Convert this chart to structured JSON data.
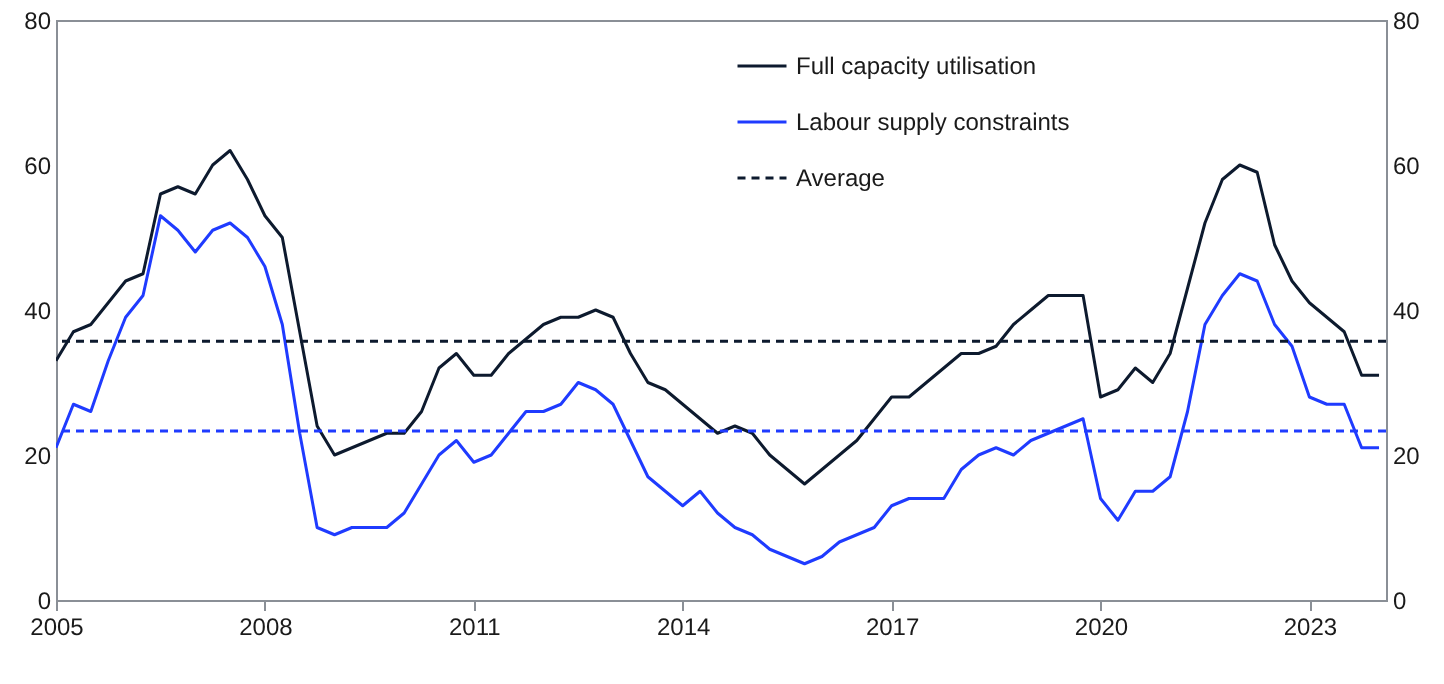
{
  "chart_data": {
    "type": "line",
    "x": [
      2005,
      2005.25,
      2005.5,
      2005.75,
      2006,
      2006.25,
      2006.5,
      2006.75,
      2007,
      2007.25,
      2007.5,
      2007.75,
      2008,
      2008.25,
      2008.5,
      2008.75,
      2009,
      2009.25,
      2009.5,
      2009.75,
      2010,
      2010.25,
      2010.5,
      2010.75,
      2011,
      2011.25,
      2011.5,
      2011.75,
      2012,
      2012.25,
      2012.5,
      2012.75,
      2013,
      2013.25,
      2013.5,
      2013.75,
      2014,
      2014.25,
      2014.5,
      2014.75,
      2015,
      2015.25,
      2015.5,
      2015.75,
      2016,
      2016.25,
      2016.5,
      2016.75,
      2017,
      2017.25,
      2017.5,
      2017.75,
      2018,
      2018.25,
      2018.5,
      2018.75,
      2019,
      2019.25,
      2019.5,
      2019.75,
      2020,
      2020.25,
      2020.5,
      2020.75,
      2021,
      2021.25,
      2021.5,
      2021.75,
      2022,
      2022.25,
      2022.5,
      2022.75,
      2023,
      2023.25,
      2023.5,
      2023.75,
      2024
    ],
    "series": [
      {
        "name": "Full capacity utilisation",
        "color": "#0d1a2e",
        "values": [
          33,
          37,
          38,
          41,
          44,
          45,
          56,
          57,
          56,
          60,
          62,
          58,
          53,
          50,
          37,
          24,
          20,
          21,
          22,
          23,
          23,
          26,
          32,
          34,
          31,
          31,
          34,
          36,
          38,
          39,
          39,
          40,
          39,
          34,
          30,
          29,
          27,
          25,
          23,
          24,
          23,
          20,
          18,
          16,
          18,
          20,
          22,
          25,
          28,
          28,
          30,
          32,
          34,
          34,
          35,
          38,
          40,
          42,
          42,
          42,
          28,
          29,
          32,
          30,
          34,
          43,
          52,
          58,
          60,
          59,
          49,
          44,
          41,
          39,
          37,
          31,
          31
        ]
      },
      {
        "name": "Labour supply constraints",
        "color": "#1f3bff",
        "values": [
          21,
          27,
          26,
          33,
          39,
          42,
          53,
          51,
          48,
          51,
          52,
          50,
          46,
          38,
          23,
          10,
          9,
          10,
          10,
          10,
          12,
          16,
          20,
          22,
          19,
          20,
          23,
          26,
          26,
          27,
          30,
          29,
          27,
          22,
          17,
          15,
          13,
          15,
          12,
          10,
          9,
          7,
          6,
          5,
          6,
          8,
          9,
          10,
          13,
          14,
          14,
          14,
          18,
          20,
          21,
          20,
          22,
          23,
          24,
          25,
          14,
          11,
          15,
          15,
          17,
          26,
          38,
          42,
          45,
          44,
          38,
          35,
          28,
          27,
          27,
          21,
          21
        ]
      }
    ],
    "ref_lines": [
      {
        "axis": "y",
        "value": 35.7,
        "label": "Average",
        "color": "#0d1a2e",
        "line_style": "dashed"
      },
      {
        "axis": "y",
        "value": 23.3,
        "color": "#1f3bff",
        "line_style": "dashed"
      }
    ],
    "xlim": [
      2005,
      2024.1
    ],
    "xticks": [
      2005,
      2008,
      2011,
      2014,
      2017,
      2020,
      2023
    ],
    "ylim": [
      0,
      80
    ],
    "yticks": [
      0,
      20,
      40,
      60,
      80
    ],
    "y2lim": [
      0,
      80
    ],
    "y2ticks": [
      0,
      20,
      40,
      60,
      80
    ],
    "grid": false,
    "legend": "top",
    "line_style": "solid",
    "marker": "none"
  }
}
